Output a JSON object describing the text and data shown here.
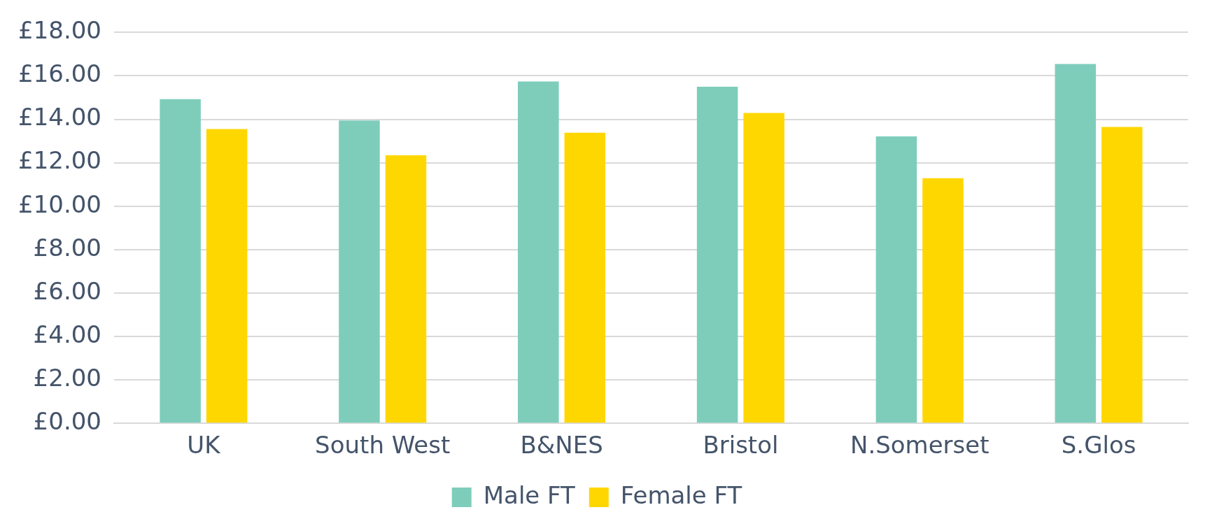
{
  "chart_data": {
    "type": "bar",
    "categories": [
      "UK",
      "South West",
      "B&NES",
      "Bristol",
      "N.Somerset",
      "S.Glos"
    ],
    "series": [
      {
        "name": "Male FT",
        "color": "#7ecdbb",
        "values": [
          14.93,
          13.95,
          15.74,
          15.5,
          13.21,
          16.55
        ]
      },
      {
        "name": "Female FT",
        "color": "#ffd700",
        "values": [
          13.55,
          12.34,
          13.38,
          14.29,
          11.29,
          13.65
        ]
      }
    ],
    "ylim": [
      0,
      18
    ],
    "yticks": [
      {
        "value": 0,
        "label": "£0.00"
      },
      {
        "value": 2,
        "label": "£2.00"
      },
      {
        "value": 4,
        "label": "£4.00"
      },
      {
        "value": 6,
        "label": "£6.00"
      },
      {
        "value": 8,
        "label": "£8.00"
      },
      {
        "value": 10,
        "label": "£10.00"
      },
      {
        "value": 12,
        "label": "£12.00"
      },
      {
        "value": 14,
        "label": "£14.00"
      },
      {
        "value": 16,
        "label": "£16.00"
      },
      {
        "value": 18,
        "label": "£18.00"
      }
    ],
    "grid": "y",
    "legend": "bottom"
  }
}
